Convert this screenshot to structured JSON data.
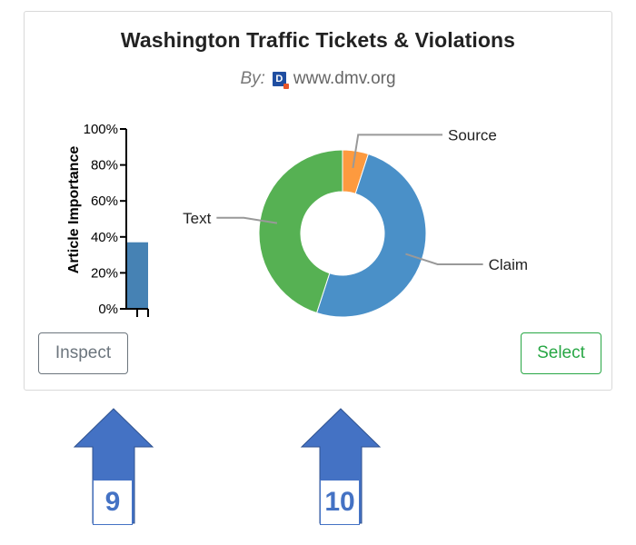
{
  "card": {
    "title": "Washington Traffic Tickets & Violations",
    "byline": {
      "by_label": "By:",
      "logo_icon": "dmv-logo-icon",
      "domain": "www.dmv.org"
    }
  },
  "chart_data": [
    {
      "type": "bar",
      "ylabel": "Article Importance",
      "yticks": [
        "100%",
        "80%",
        "60%",
        "40%",
        "20%",
        "0%"
      ],
      "ylim": [
        0,
        100
      ],
      "categories": [
        ""
      ],
      "values": [
        37
      ],
      "color": "#4682b4"
    },
    {
      "type": "pie",
      "donut": true,
      "labels": [
        "Source",
        "Claim",
        "Text"
      ],
      "values": [
        5,
        50,
        45
      ],
      "colors": [
        "#fd9a3f",
        "#4a90c8",
        "#56b153"
      ]
    }
  ],
  "buttons": {
    "inspect": "Inspect",
    "select": "Select"
  },
  "annotations": [
    {
      "label": "9",
      "icon": "up-arrow-icon",
      "color": "#4472c4"
    },
    {
      "label": "10",
      "icon": "up-arrow-icon",
      "color": "#4472c4"
    }
  ]
}
